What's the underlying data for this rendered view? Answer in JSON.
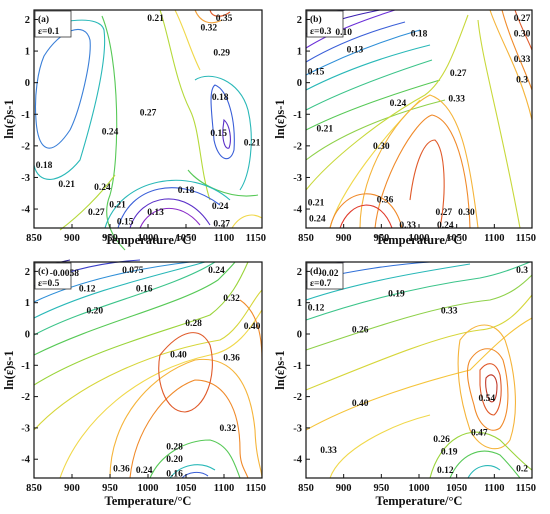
{
  "chart_data": [
    {
      "type": "contour",
      "panel_label": "(a)",
      "strain_label": "ε=0.1",
      "xlabel": "Temperature/°C",
      "ylabel": "ln(ε̇)s-1",
      "xlim": [
        850,
        1150
      ],
      "ylim": [
        -4.6,
        2.3
      ],
      "xticks": [
        "850",
        "900",
        "950",
        "1000",
        "1050",
        "1100",
        "1150"
      ],
      "yticks": [
        "-4",
        "-3",
        "-2",
        "-1",
        "0",
        "1",
        "2"
      ],
      "contour_labels": [
        {
          "text": "0.21",
          "t": 1010,
          "v": 2.05
        },
        {
          "text": "0.35",
          "t": 1100,
          "v": 2.05
        },
        {
          "text": "0.32",
          "t": 1080,
          "v": 1.75
        },
        {
          "text": "0.29",
          "t": 1097,
          "v": 0.95
        },
        {
          "text": "0.27",
          "t": 1000,
          "v": -0.95
        },
        {
          "text": "0.24",
          "t": 950,
          "v": -1.55
        },
        {
          "text": "0.18",
          "t": 1095,
          "v": -0.45
        },
        {
          "text": "0.15",
          "t": 1093,
          "v": -1.6
        },
        {
          "text": "0.21",
          "t": 1140,
          "v": -1.9
        },
        {
          "text": "0.18",
          "t": 860,
          "v": -2.6
        },
        {
          "text": "0.21",
          "t": 893,
          "v": -3.2
        },
        {
          "text": "0.24",
          "t": 940,
          "v": -3.3
        },
        {
          "text": "0.18",
          "t": 1050,
          "v": -3.4
        },
        {
          "text": "0.27",
          "t": 932,
          "v": -4.1
        },
        {
          "text": "0.21",
          "t": 960,
          "v": -3.85
        },
        {
          "text": "0.15",
          "t": 970,
          "v": -4.4
        },
        {
          "text": "0.13",
          "t": 1010,
          "v": -4.1
        },
        {
          "text": "0.24",
          "t": 1095,
          "v": -3.9
        },
        {
          "text": "0.27",
          "t": 1097,
          "v": -4.45
        }
      ]
    },
    {
      "type": "contour",
      "panel_label": "(b)",
      "strain_label": "ε=0.3",
      "xlabel": "Temperature/°C",
      "ylabel": "ln(ε̇)s-1",
      "xlim": [
        850,
        1150
      ],
      "ylim": [
        -4.6,
        2.3
      ],
      "xticks": [
        "850",
        "900",
        "950",
        "1000",
        "1050",
        "1100",
        "1150"
      ],
      "yticks": [
        "-4",
        "-3",
        "-2",
        "-1",
        "0",
        "1",
        "2"
      ],
      "contour_labels": [
        {
          "text": "0.10",
          "t": 900,
          "v": 1.6
        },
        {
          "text": "0.13",
          "t": 915,
          "v": 1.05
        },
        {
          "text": "0.18",
          "t": 1000,
          "v": 1.55
        },
        {
          "text": "0.27",
          "t": 1140,
          "v": 2.05
        },
        {
          "text": "0.30",
          "t": 1140,
          "v": 1.55
        },
        {
          "text": "0.15",
          "t": 855,
          "v": 0.35
        },
        {
          "text": "0.27",
          "t": 1052,
          "v": 0.3
        },
        {
          "text": "0.33",
          "t": 1140,
          "v": 0.75
        },
        {
          "text": "0.3",
          "t": 1150,
          "v": 0.1
        },
        {
          "text": "0.24",
          "t": 972,
          "v": -0.65
        },
        {
          "text": "0.33",
          "t": 1050,
          "v": -0.5
        },
        {
          "text": "0.21",
          "t": 875,
          "v": -1.45
        },
        {
          "text": "0.30",
          "t": 950,
          "v": -2.0
        },
        {
          "text": "0.21",
          "t": 855,
          "v": -3.8
        },
        {
          "text": "0.24",
          "t": 865,
          "v": -4.3
        },
        {
          "text": "0.36",
          "t": 955,
          "v": -3.7
        },
        {
          "text": "0.33",
          "t": 985,
          "v": -4.55
        },
        {
          "text": "0.27",
          "t": 1033,
          "v": -4.1
        },
        {
          "text": "0.30",
          "t": 1063,
          "v": -4.1
        },
        {
          "text": "0.24",
          "t": 1035,
          "v": -4.55
        }
      ]
    },
    {
      "type": "contour",
      "panel_label": "(c)",
      "strain_label": "ε=0.5",
      "xlabel": "Temperature/°C",
      "ylabel": "ln(ε̇)s-1",
      "xlim": [
        850,
        1150
      ],
      "ylim": [
        -4.6,
        2.3
      ],
      "xticks": [
        "850",
        "900",
        "950",
        "1000",
        "1050",
        "1100",
        "1150"
      ],
      "yticks": [
        "-4",
        "-3",
        "-2",
        "-1",
        "0",
        "1",
        "2"
      ],
      "contour_labels": [
        {
          "text": "-0.0058",
          "t": 890,
          "v": 1.95
        },
        {
          "text": "0.075",
          "t": 980,
          "v": 2.1
        },
        {
          "text": "0.24",
          "t": 1090,
          "v": 2.15
        },
        {
          "text": "0.12",
          "t": 920,
          "v": 1.45
        },
        {
          "text": "0.16",
          "t": 995,
          "v": 1.45
        },
        {
          "text": "0.20",
          "t": 930,
          "v": 0.75
        },
        {
          "text": "0.32",
          "t": 1110,
          "v": 1.15
        },
        {
          "text": "0.28",
          "t": 1060,
          "v": 0.35
        },
        {
          "text": "0.40",
          "t": 1140,
          "v": 0.25
        },
        {
          "text": "0.40",
          "t": 1040,
          "v": -0.65
        },
        {
          "text": "0.36",
          "t": 1110,
          "v": -0.75
        },
        {
          "text": "0.32",
          "t": 1105,
          "v": -3.0
        },
        {
          "text": "0.28",
          "t": 1035,
          "v": -3.6
        },
        {
          "text": "0.20",
          "t": 1035,
          "v": -4.0
        },
        {
          "text": "0.36",
          "t": 965,
          "v": -4.3
        },
        {
          "text": "0.24",
          "t": 995,
          "v": -4.35
        },
        {
          "text": "0.16",
          "t": 1035,
          "v": -4.45
        }
      ]
    },
    {
      "type": "contour",
      "panel_label": "(d)",
      "strain_label": "ε=0.7",
      "xlabel": "Temperature/°C",
      "ylabel": "ln(ε̇)s-1",
      "xlim": [
        850,
        1150
      ],
      "ylim": [
        -4.6,
        2.3
      ],
      "xticks": [
        "850",
        "900",
        "950",
        "1000",
        "1050",
        "1100",
        "1150"
      ],
      "yticks": [
        "-4",
        "-3",
        "-2",
        "-1",
        "0",
        "1",
        "2"
      ],
      "contour_labels": [
        {
          "text": "-0.02",
          "t": 880,
          "v": 1.95
        },
        {
          "text": "0.3",
          "t": 1145,
          "v": 2.2
        },
        {
          "text": "0.19",
          "t": 970,
          "v": 1.3
        },
        {
          "text": "0.12",
          "t": 860,
          "v": 0.85
        },
        {
          "text": "0.33",
          "t": 1040,
          "v": 0.75
        },
        {
          "text": "0.26",
          "t": 922,
          "v": 0.15
        },
        {
          "text": "0.40",
          "t": 922,
          "v": -2.2
        },
        {
          "text": "0.54",
          "t": 1090,
          "v": -2.05
        },
        {
          "text": "0.47",
          "t": 1080,
          "v": -3.15
        },
        {
          "text": "0.26",
          "t": 1030,
          "v": -3.35
        },
        {
          "text": "0.33",
          "t": 880,
          "v": -3.7
        },
        {
          "text": "0.19",
          "t": 1040,
          "v": -3.75
        },
        {
          "text": "0.12",
          "t": 1035,
          "v": -4.35
        },
        {
          "text": "0.2",
          "t": 1145,
          "v": -4.3
        }
      ]
    }
  ]
}
